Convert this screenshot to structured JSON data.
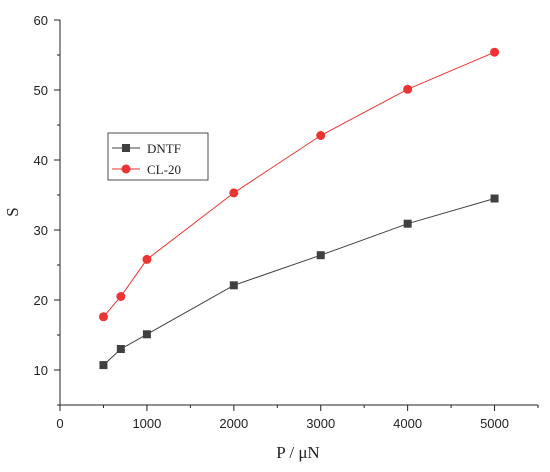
{
  "chart_data": {
    "type": "line",
    "xlabel": "P / μN",
    "ylabel": "S",
    "xlim": [
      0,
      5500
    ],
    "ylim": [
      5,
      60
    ],
    "x_ticks": [
      0,
      1000,
      2000,
      3000,
      4000,
      5000
    ],
    "x_tick_labels": [
      "0",
      "1000",
      "2000",
      "3000",
      "4000",
      "5000"
    ],
    "y_ticks": [
      10,
      20,
      30,
      40,
      50,
      60
    ],
    "y_tick_labels": [
      "10",
      "20",
      "30",
      "40",
      "50",
      "60"
    ],
    "grid": false,
    "legend_position": "left",
    "series": [
      {
        "name": "DNTF",
        "marker": "square",
        "color": "#404040",
        "line_color": "#404040",
        "x": [
          500,
          700,
          1000,
          2000,
          3000,
          4000,
          5000
        ],
        "y": [
          10.7,
          13.0,
          15.1,
          22.1,
          26.4,
          30.9,
          34.5
        ]
      },
      {
        "name": "CL-20",
        "marker": "circle",
        "color": "#ee3333",
        "line_color": "#ee3333",
        "x": [
          500,
          700,
          1000,
          2000,
          3000,
          4000,
          5000
        ],
        "y": [
          17.6,
          20.5,
          25.8,
          35.3,
          43.5,
          50.1,
          55.4
        ]
      }
    ]
  }
}
